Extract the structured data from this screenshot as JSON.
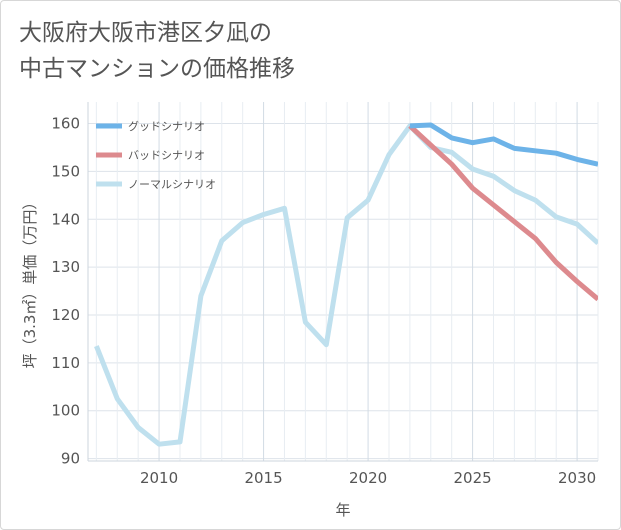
{
  "title": {
    "line1": "大阪府大阪市港区夕凪の",
    "line2": "中古マンションの価格推移"
  },
  "chart_data": {
    "type": "line",
    "xlabel": "年",
    "ylabel": "坪（3.3㎡）単価（万円）",
    "xlim": [
      2006.6,
      2031
    ],
    "ylim": [
      89.5,
      164.5
    ],
    "xticks": [
      2010,
      2015,
      2020,
      2025,
      2030
    ],
    "yticks": [
      90,
      100,
      110,
      120,
      130,
      140,
      150,
      160
    ],
    "grid": true,
    "legend_position": "top-right",
    "series": [
      {
        "name": "ノーマルシナリオ",
        "color": "#bfe0ee",
        "x": [
          2007,
          2008,
          2009,
          2010,
          2011,
          2012,
          2013,
          2014,
          2015,
          2016,
          2017,
          2018,
          2019,
          2020,
          2021,
          2022,
          2023,
          2024,
          2025,
          2026,
          2027,
          2028,
          2029,
          2030,
          2031
        ],
        "values": [
          113.5,
          102.5,
          96.5,
          93.0,
          93.5,
          124.0,
          135.5,
          139.3,
          141.0,
          142.3,
          118.5,
          113.8,
          140.3,
          144.0,
          153.5,
          159.5,
          155.0,
          154.0,
          150.5,
          149.0,
          146.0,
          144.0,
          140.5,
          139.0,
          135.0
        ]
      },
      {
        "name": "バッドシナリオ",
        "color": "#dd8a8e",
        "x": [
          2022,
          2023,
          2024,
          2025,
          2026,
          2027,
          2028,
          2029,
          2030,
          2031
        ],
        "values": [
          159.5,
          155.5,
          151.5,
          146.5,
          143.0,
          139.5,
          136.0,
          131.0,
          127.0,
          123.3
        ]
      },
      {
        "name": "グッドシナリオ",
        "color": "#6db3e8",
        "x": [
          2022,
          2023,
          2024,
          2025,
          2026,
          2027,
          2028,
          2029,
          2030,
          2031
        ],
        "values": [
          159.5,
          159.7,
          157.0,
          156.0,
          156.8,
          154.8,
          154.3,
          153.8,
          152.5,
          151.5
        ]
      }
    ],
    "legend": [
      "グッドシナリオ",
      "バッドシナリオ",
      "ノーマルシナリオ"
    ]
  }
}
